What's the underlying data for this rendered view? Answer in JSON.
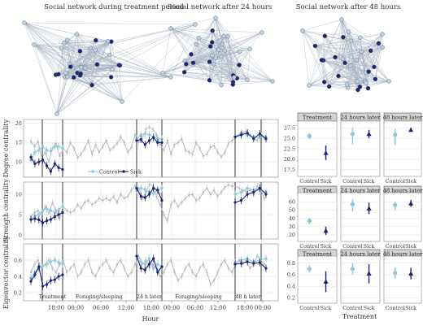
{
  "colors": {
    "control": "#8fc7dc",
    "sick": "#1b2470",
    "background_series": "#b8b8b8",
    "grid": "#e6e6e6",
    "strip": "#d4d4d4",
    "net_edge": "#8897ab",
    "net_node_light": "#b7d3df",
    "net_node_dark": "#1d246b"
  },
  "networks": [
    {
      "title": "Social network during treatment period"
    },
    {
      "title": "Social network after 24 hours"
    },
    {
      "title": "Social network after 48 hours"
    }
  ],
  "chart_data": [
    {
      "type": "line",
      "role": "timeseries",
      "xlabel": "Hour",
      "x_ticks": [
        "18:00",
        "00:00",
        "06:00",
        "12:00",
        "18:00",
        "00:00",
        "06:00",
        "12:00",
        "18:00",
        "00:00"
      ],
      "legend": {
        "position": "inside-top-left",
        "entries": [
          "Control",
          "Sick"
        ]
      },
      "periods": [
        "Treatment",
        "Foraging/sleeping",
        "24 h later",
        "Foraging/sleeping",
        "48 h later"
      ],
      "panels": [
        {
          "ylabel": "Degree centrality",
          "y_ticks": [
            "10",
            "15",
            "20"
          ],
          "ylim": [
            6,
            21
          ],
          "background": [
            15.3,
            14.0,
            15.3,
            11.0,
            12.5,
            10.0,
            13.5,
            14.7,
            11.5,
            13.5,
            12.5,
            15.0,
            13.5,
            11.0,
            12.0,
            13.5,
            15.5,
            12.0,
            14.5,
            12.5,
            14.0,
            15.5,
            13.0,
            13.8,
            14.8,
            16.5,
            15.0,
            12.5,
            13.8,
            17.0,
            15.0,
            16.0,
            18.5,
            19.0,
            18.5,
            17.0,
            14.5,
            13.0,
            15.5,
            12.0,
            14.5,
            15.0,
            16.0,
            13.0,
            12.5,
            12.0,
            15.0,
            13.5,
            11.5,
            12.0,
            13.8,
            14.2,
            12.5,
            11.3,
            12.4,
            14.8,
            15.5,
            16.3,
            17.0,
            17.5,
            18.0,
            17.0,
            16.0,
            15.5,
            17.5,
            16.2
          ],
          "control": [
            10.5,
            12.5,
            13.0,
            14.0,
            13.0,
            12.8,
            14.0,
            14.0,
            13.5,
            16.0,
            17.0,
            17.3,
            17.0,
            16.5,
            16.0,
            16.0,
            16.5,
            17.5,
            17.0,
            16.5,
            16.3,
            16.5
          ],
          "sick": [
            11.2,
            9.5,
            10.0,
            10.5,
            9.0,
            7.5,
            9.5,
            8.5,
            8.0,
            15.5,
            15.8,
            14.5,
            15.5,
            16.3,
            15.0,
            15.0,
            16.5,
            17.0,
            17.5,
            16.0,
            17.3,
            16.0
          ]
        },
        {
          "ylabel": "Strength centrality",
          "y_ticks": [
            "0",
            "5",
            "10"
          ],
          "ylim": [
            -1,
            13
          ],
          "background": [
            4.5,
            5.5,
            6.0,
            5.0,
            7.0,
            5.5,
            8.0,
            6.0,
            4.0,
            7.0,
            6.0,
            5.5,
            6.0,
            7.5,
            6.5,
            8.0,
            8.5,
            7.5,
            8.0,
            9.0,
            8.5,
            9.0,
            8.5,
            9.5,
            8.0,
            10.0,
            9.0,
            9.5,
            11.0,
            12.0,
            11.5,
            9.0,
            10.5,
            12.5,
            12.0,
            9.5,
            7.5,
            5.0,
            3.5,
            7.5,
            8.5,
            7.0,
            8.0,
            9.0,
            9.8,
            10.0,
            8.5,
            9.0,
            10.5,
            11.5,
            10.0,
            11.0,
            9.5,
            10.5,
            11.8,
            12.3,
            12.0,
            12.0,
            11.5,
            11.0,
            10.5,
            11.0,
            10.0,
            12.0,
            11.0,
            9.0
          ],
          "control": [
            3.8,
            4.7,
            5.0,
            6.0,
            6.5,
            6.0,
            5.5,
            6.2,
            7.0,
            11.0,
            11.5,
            11.2,
            10.5,
            10.3,
            11.0,
            11.5,
            10.0,
            10.5,
            11.5,
            11.0,
            11.0,
            10.5
          ],
          "sick": [
            3.8,
            4.0,
            3.7,
            3.0,
            3.5,
            3.8,
            4.5,
            5.0,
            5.5,
            11.5,
            9.5,
            9.2,
            10.0,
            11.5,
            11.0,
            8.5,
            8.0,
            8.5,
            10.0,
            10.5,
            11.5,
            10.0
          ]
        },
        {
          "ylabel": "Eigenvector centrality",
          "y_ticks": [
            "0.2",
            "0.4",
            "0.6"
          ],
          "ylim": [
            0.1,
            0.8
          ],
          "background": [
            0.45,
            0.55,
            0.6,
            0.5,
            0.55,
            0.6,
            0.5,
            0.45,
            0.55,
            0.6,
            0.45,
            0.5,
            0.55,
            0.4,
            0.45,
            0.55,
            0.6,
            0.45,
            0.4,
            0.5,
            0.55,
            0.6,
            0.5,
            0.45,
            0.55,
            0.6,
            0.5,
            0.4,
            0.45,
            0.55,
            0.65,
            0.55,
            0.6,
            0.5,
            0.55,
            0.5,
            0.4,
            0.45,
            0.55,
            0.6,
            0.45,
            0.35,
            0.4,
            0.5,
            0.55,
            0.45,
            0.4,
            0.5,
            0.55,
            0.45,
            0.3,
            0.35,
            0.45,
            0.55,
            0.6,
            0.5,
            0.45,
            0.55,
            0.6,
            0.55,
            0.6,
            0.5,
            0.55,
            0.65,
            0.6,
            0.55
          ],
          "control": [
            0.38,
            0.45,
            0.5,
            0.53,
            0.55,
            0.58,
            0.6,
            0.57,
            0.55,
            0.6,
            0.58,
            0.55,
            0.62,
            0.5,
            0.55,
            0.52,
            0.57,
            0.6,
            0.62,
            0.58,
            0.6,
            0.62
          ],
          "sick": [
            0.34,
            0.42,
            0.52,
            0.28,
            0.3,
            0.35,
            0.36,
            0.4,
            0.42,
            0.65,
            0.5,
            0.48,
            0.55,
            0.62,
            0.45,
            0.52,
            0.55,
            0.56,
            0.58,
            0.56,
            0.57,
            0.5
          ]
        }
      ]
    },
    {
      "type": "scatter",
      "role": "summary",
      "xlabel": "Treatment",
      "categories": [
        "Control",
        "Sick"
      ],
      "facets": [
        "Treatment",
        "24 hours later",
        "48 hours later"
      ],
      "rows": [
        {
          "y_ticks": [
            "17.5",
            "20.0",
            "22.5",
            "25.0",
            "27.5"
          ],
          "ylim": [
            16.5,
            28.5
          ],
          "points": [
            [
              {
                "mean": 25.5,
                "lo": 24.8,
                "hi": 26.2
              },
              {
                "mean": 21.5,
                "lo": 19.8,
                "hi": 23.3
              }
            ],
            [
              {
                "mean": 26.0,
                "lo": 23.5,
                "hi": 27.5
              },
              {
                "mean": 26.0,
                "lo": 25.0,
                "hi": 27.0
              }
            ],
            [
              {
                "mean": 25.8,
                "lo": 23.3,
                "hi": 27.3
              },
              {
                "mean": 27.0,
                "lo": 26.6,
                "hi": 27.5
              }
            ]
          ]
        },
        {
          "y_ticks": [
            "20",
            "30",
            "40",
            "50",
            "60"
          ],
          "ylim": [
            15,
            68
          ],
          "points": [
            [
              {
                "mean": 37,
                "lo": 33,
                "hi": 40
              },
              {
                "mean": 25,
                "lo": 20,
                "hi": 30
              }
            ],
            [
              {
                "mean": 57,
                "lo": 48,
                "hi": 63
              },
              {
                "mean": 52,
                "lo": 45,
                "hi": 59
              }
            ],
            [
              {
                "mean": 56,
                "lo": 50,
                "hi": 60
              },
              {
                "mean": 58,
                "lo": 54,
                "hi": 62
              }
            ]
          ]
        },
        {
          "y_ticks": [
            "0.2",
            "0.4",
            "0.6",
            "0.8"
          ],
          "ylim": [
            0.15,
            0.88
          ],
          "points": [
            [
              {
                "mean": 0.7,
                "lo": 0.64,
                "hi": 0.76
              },
              {
                "mean": 0.48,
                "lo": 0.3,
                "hi": 0.66
              }
            ],
            [
              {
                "mean": 0.7,
                "lo": 0.6,
                "hi": 0.8
              },
              {
                "mean": 0.62,
                "lo": 0.45,
                "hi": 0.78
              }
            ],
            [
              {
                "mean": 0.63,
                "lo": 0.53,
                "hi": 0.73
              },
              {
                "mean": 0.62,
                "lo": 0.52,
                "hi": 0.72
              }
            ]
          ]
        }
      ]
    }
  ]
}
